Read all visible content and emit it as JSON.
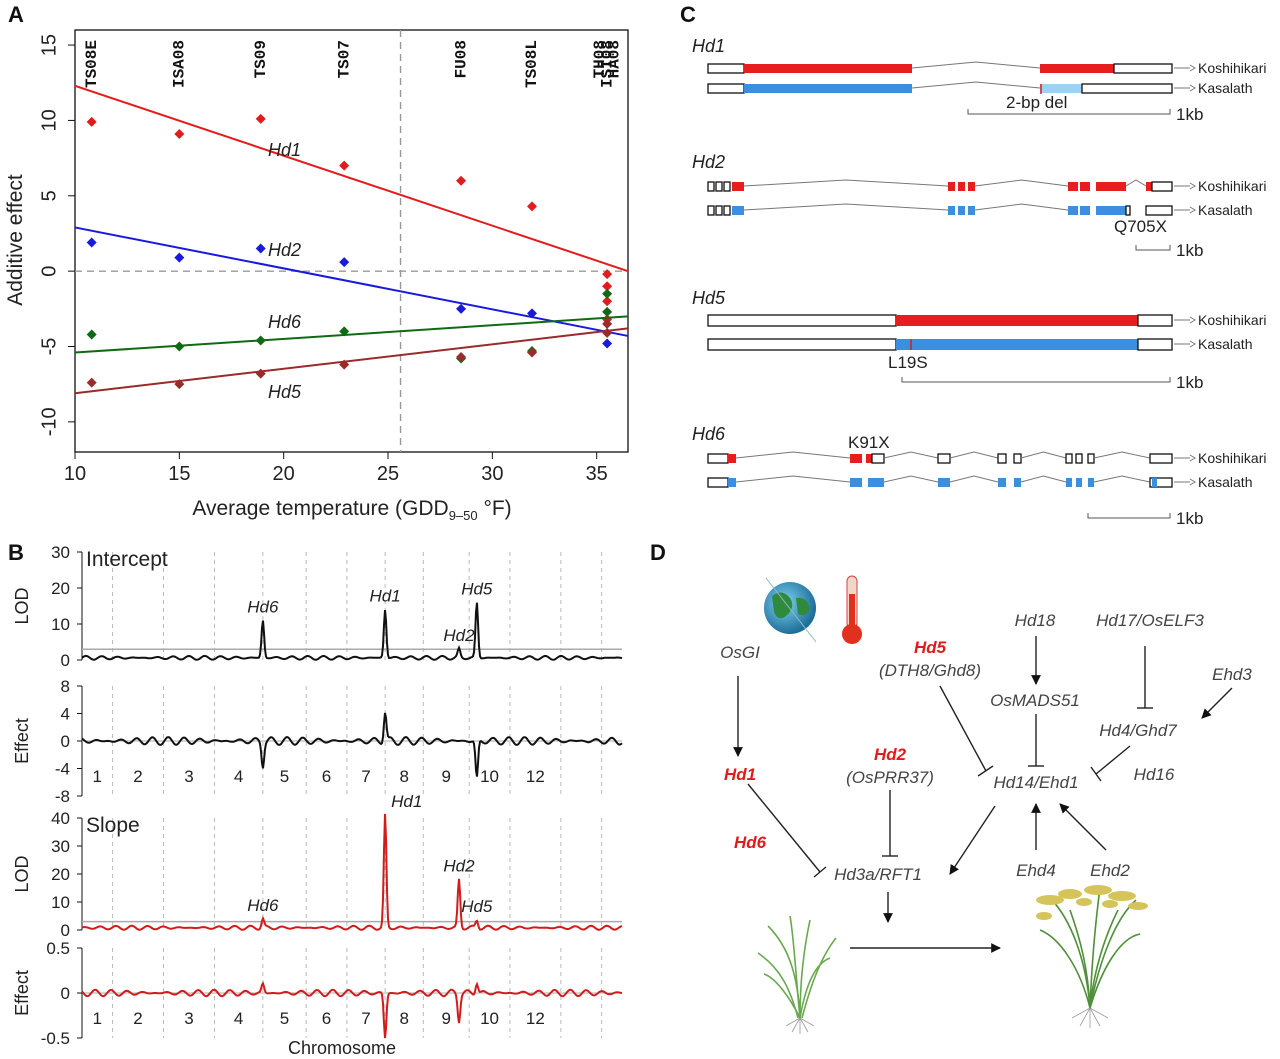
{
  "panel_labels": {
    "a": "A",
    "b": "B",
    "c": "C",
    "d": "D"
  },
  "chart_data": [
    {
      "type": "scatter",
      "panel": "A",
      "xlabel_main": "Average temperature (GDD",
      "xlabel_sub": "9–50",
      "xlabel_tail": " °F)",
      "ylabel": "Additive effect",
      "xlim": [
        10,
        36.5
      ],
      "ylim": [
        -12,
        16
      ],
      "xticks": [
        10,
        15,
        20,
        25,
        30,
        35
      ],
      "yticks": [
        15,
        10,
        5,
        0,
        -5,
        -10
      ],
      "vline_x": 25.6,
      "hline_y": 0,
      "sites": [
        {
          "name": "TS08E",
          "x": 10.8
        },
        {
          "name": "ISA08",
          "x": 15
        },
        {
          "name": "TS09",
          "x": 18.9
        },
        {
          "name": "TS07",
          "x": 22.9
        },
        {
          "name": "FU08",
          "x": 28.5
        },
        {
          "name": "TS08L",
          "x": 31.9
        },
        {
          "name": "TH08",
          "x": 35.2
        },
        {
          "name": "ISI08",
          "x": 35.5
        },
        {
          "name": "HA08",
          "x": 35.8
        }
      ],
      "series": [
        {
          "name": "Hd1",
          "color": "#e11c1c",
          "fit": [
            [
              10,
              12.3
            ],
            [
              36.5,
              0
            ]
          ],
          "x": [
            10.8,
            15,
            18.9,
            22.9,
            28.5,
            31.9,
            35.5,
            35.5,
            35.5,
            35.5
          ],
          "y": [
            9.9,
            9.1,
            10.1,
            7.0,
            6.0,
            4.3,
            -0.2,
            -1.0,
            -2.0,
            -3.2
          ]
        },
        {
          "name": "Hd2",
          "color": "#1a1adc",
          "fit": [
            [
              10,
              2.9
            ],
            [
              36.5,
              -4.3
            ]
          ],
          "x": [
            10.8,
            15,
            18.9,
            22.9,
            28.5,
            31.9,
            35.5
          ],
          "y": [
            1.9,
            0.9,
            1.5,
            0.6,
            -2.5,
            -2.8,
            -4.8
          ]
        },
        {
          "name": "Hd6",
          "color": "#0f6a14",
          "fit": [
            [
              10,
              -5.4
            ],
            [
              36.5,
              -3.0
            ]
          ],
          "x": [
            10.8,
            15,
            18.9,
            22.9,
            28.5,
            31.9,
            35.5,
            35.5
          ],
          "y": [
            -4.2,
            -5.0,
            -4.6,
            -4.0,
            -5.8,
            -5.3,
            -1.5,
            -2.7
          ]
        },
        {
          "name": "Hd5",
          "color": "#9b2a2a",
          "fit": [
            [
              10,
              -8.1
            ],
            [
              36.5,
              -3.8
            ]
          ],
          "x": [
            10.8,
            15,
            18.9,
            22.9,
            28.5,
            31.9,
            35.5,
            35.5
          ],
          "y": [
            -7.4,
            -7.5,
            -6.8,
            -6.2,
            -5.7,
            -5.4,
            -3.5,
            -4.1
          ]
        }
      ]
    },
    {
      "type": "line",
      "panel": "B",
      "xlabel": "Chromosome",
      "chromosomes": [
        "1",
        "2",
        "3",
        "4",
        "5",
        "6",
        "7",
        "8",
        "9",
        "10",
        "12"
      ],
      "subplots": [
        {
          "title": "Intercept",
          "ylabel": "LOD",
          "ylim": [
            0,
            30
          ],
          "yticks": [
            30,
            20,
            10,
            0
          ],
          "threshold": 3,
          "color": "#111111",
          "peaks": [
            {
              "label": "Hd6",
              "pos": 3.55,
              "value": 11
            },
            {
              "label": "Hd1",
              "pos": 5.95,
              "value": 14
            },
            {
              "label": "Hd2",
              "pos": 7.4,
              "value": 3
            },
            {
              "label": "Hd5",
              "pos": 7.75,
              "value": 16
            }
          ]
        },
        {
          "title": "",
          "ylabel": "Effect",
          "ylim": [
            -8,
            8
          ],
          "yticks": [
            8,
            4,
            0,
            -4,
            -8
          ],
          "threshold": null,
          "color": "#111111",
          "peaks": [
            {
              "label": "",
              "pos": 3.55,
              "value": -3.5
            },
            {
              "label": "",
              "pos": 5.95,
              "value": 4.3
            },
            {
              "label": "",
              "pos": 7.75,
              "value": -5.5
            }
          ]
        },
        {
          "title": "Slope",
          "ylabel": "LOD",
          "ylim": [
            0,
            40
          ],
          "yticks": [
            40,
            30,
            20,
            10,
            0
          ],
          "threshold": 3,
          "color": "#d01c1c",
          "peaks": [
            {
              "label": "Hd6",
              "pos": 3.55,
              "value": 4
            },
            {
              "label": "Hd1",
              "pos": 5.95,
              "value": 41
            },
            {
              "label": "Hd2",
              "pos": 7.4,
              "value": 18
            },
            {
              "label": "Hd5",
              "pos": 7.75,
              "value": 3.5
            }
          ]
        },
        {
          "title": "",
          "ylabel": "Effect",
          "ylim": [
            -0.5,
            0.5
          ],
          "yticks": [
            "0.5",
            "0",
            "-0.5"
          ],
          "threshold": null,
          "color": "#d01c1c",
          "peaks": [
            {
              "label": "",
              "pos": 3.55,
              "value": 0.1
            },
            {
              "label": "",
              "pos": 5.95,
              "value": -0.5
            },
            {
              "label": "",
              "pos": 7.4,
              "value": -0.3
            },
            {
              "label": "",
              "pos": 7.75,
              "value": 0.12
            }
          ]
        }
      ]
    }
  ],
  "genes": [
    {
      "name": "Hd1",
      "alleles": [
        "Koshihikari",
        "Kasalath"
      ],
      "mutation": "2-bp del",
      "scale": "1kb"
    },
    {
      "name": "Hd2",
      "alleles": [
        "Koshihikari",
        "Kasalath"
      ],
      "mutation": "Q705X",
      "scale": "1kb"
    },
    {
      "name": "Hd5",
      "alleles": [
        "Koshihikari",
        "Kasalath"
      ],
      "mutation": "L19S",
      "scale": "1kb"
    },
    {
      "name": "Hd6",
      "alleles": [
        "Koshihikari",
        "Kasalath"
      ],
      "mutation": "K91X",
      "scale": "1kb"
    }
  ],
  "colors": {
    "koshihikari": "#e61e1e",
    "kasalath": "#3a8fe0",
    "kasalath_light": "#9ed2f0",
    "highlight_gene": "#e01b1b"
  },
  "pathway": {
    "nodes": {
      "osgi": "OsGI",
      "hd1": "Hd1",
      "hd6": "Hd6",
      "hd5": "Hd5",
      "hd5_alias": "(DTH8/Ghd8)",
      "hd2": "Hd2",
      "hd2_alias": "(OsPRR37)",
      "hd18": "Hd18",
      "osmads51": "OsMADS51",
      "hd17": "Hd17/OsELF3",
      "ehd3": "Ehd3",
      "hd4": "Hd4/Ghd7",
      "hd14": "Hd14/Ehd1",
      "hd16": "Hd16",
      "hd3a": "Hd3a/RFT1",
      "ehd4": "Ehd4",
      "ehd2": "Ehd2"
    },
    "icons": [
      "globe-icon",
      "thermometer-icon",
      "young-rice-plant-icon",
      "flowering-rice-plant-icon"
    ]
  }
}
